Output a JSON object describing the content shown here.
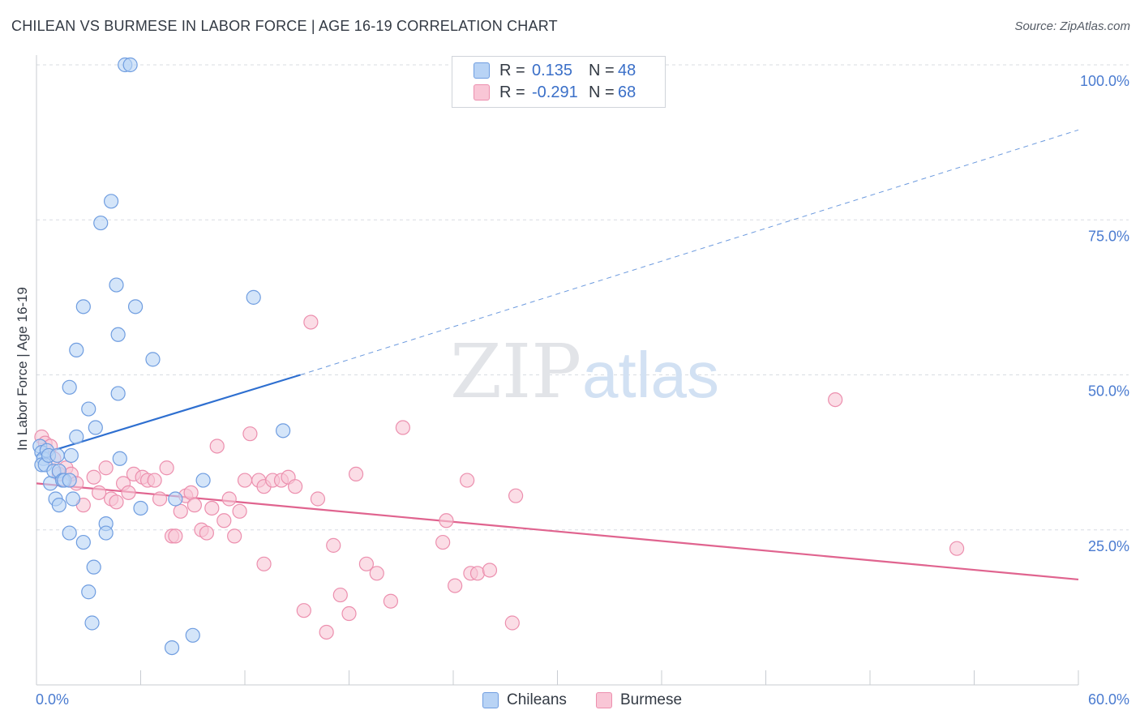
{
  "title": "CHILEAN VS BURMESE IN LABOR FORCE | AGE 16-19 CORRELATION CHART",
  "source": "Source: ZipAtlas.com",
  "watermark": {
    "zip": "ZIP",
    "atlas": "atlas"
  },
  "legend": {
    "series": [
      {
        "r_label": "R =",
        "r_value": "0.135",
        "n_label": "N =",
        "n_value": "48"
      },
      {
        "r_label": "R =",
        "r_value": "-0.291",
        "n_label": "N =",
        "n_value": "68"
      }
    ]
  },
  "bottom_legend": {
    "chileans": "Chileans",
    "burmese": "Burmese"
  },
  "colors": {
    "chilean_fill": "#b8d3f5",
    "chilean_stroke": "#6f9de0",
    "chilean_line": "#2e6fd0",
    "burmese_fill": "#f9c6d6",
    "burmese_stroke": "#ec8fae",
    "burmese_line": "#e0648f",
    "tick_text": "#4a7bd0",
    "grid": "#d8dce2"
  },
  "chart_data": {
    "type": "scatter",
    "title": "CHILEAN VS BURMESE IN LABOR FORCE | AGE 16-19 CORRELATION CHART",
    "xlabel": "",
    "ylabel": "In Labor Force | Age 16-19",
    "xlim": [
      0,
      60
    ],
    "ylim": [
      0,
      100
    ],
    "x_tick_labels": [
      "0.0%",
      "60.0%"
    ],
    "y_ticks": [
      25,
      50,
      75,
      100
    ],
    "y_tick_labels": [
      "25.0%",
      "50.0%",
      "75.0%",
      "100.0%"
    ],
    "series": [
      {
        "name": "Chileans",
        "r": 0.135,
        "n": 48,
        "points": [
          [
            0.2,
            38.5
          ],
          [
            0.3,
            37.5
          ],
          [
            0.4,
            36.5
          ],
          [
            0.3,
            35.5
          ],
          [
            0.5,
            35.5
          ],
          [
            0.6,
            37.8
          ],
          [
            0.7,
            37.0
          ],
          [
            0.8,
            32.5
          ],
          [
            1.0,
            34.5
          ],
          [
            1.2,
            37.0
          ],
          [
            1.3,
            34.5
          ],
          [
            1.1,
            30.0
          ],
          [
            1.3,
            29.0
          ],
          [
            1.5,
            33.0
          ],
          [
            1.6,
            33.0
          ],
          [
            1.9,
            33.0
          ],
          [
            2.1,
            30.0
          ],
          [
            2.0,
            37.0
          ],
          [
            2.3,
            40.0
          ],
          [
            1.9,
            24.5
          ],
          [
            2.7,
            23.0
          ],
          [
            3.4,
            41.5
          ],
          [
            3.0,
            44.5
          ],
          [
            1.9,
            48.0
          ],
          [
            2.3,
            54.0
          ],
          [
            2.7,
            61.0
          ],
          [
            4.7,
            56.5
          ],
          [
            4.6,
            64.5
          ],
          [
            5.7,
            61.0
          ],
          [
            3.7,
            74.5
          ],
          [
            4.3,
            78.0
          ],
          [
            5.1,
            100.0
          ],
          [
            5.4,
            100.0
          ],
          [
            6.7,
            52.5
          ],
          [
            4.7,
            47.0
          ],
          [
            4.8,
            36.5
          ],
          [
            6.0,
            28.5
          ],
          [
            3.3,
            19.0
          ],
          [
            3.0,
            15.0
          ],
          [
            3.2,
            10.0
          ],
          [
            4.0,
            26.0
          ],
          [
            4.0,
            24.5
          ],
          [
            7.8,
            6.0
          ],
          [
            9.0,
            8.0
          ],
          [
            8.0,
            30.0
          ],
          [
            9.6,
            33.0
          ],
          [
            12.5,
            62.5
          ],
          [
            14.2,
            41.0
          ]
        ],
        "trend": {
          "x0": 0,
          "y0": 37.0,
          "x1": 15.2,
          "y1": 50.0,
          "dashed_to_x": 60,
          "dashed_to_y": 89.5
        }
      },
      {
        "name": "Burmese",
        "r": -0.291,
        "n": 68,
        "points": [
          [
            0.3,
            40.0
          ],
          [
            0.5,
            39.0
          ],
          [
            0.8,
            38.5
          ],
          [
            1.0,
            36.5
          ],
          [
            1.3,
            34.0
          ],
          [
            1.7,
            35.0
          ],
          [
            2.0,
            34.0
          ],
          [
            2.3,
            32.5
          ],
          [
            2.7,
            29.0
          ],
          [
            3.3,
            33.5
          ],
          [
            3.6,
            31.0
          ],
          [
            4.0,
            35.0
          ],
          [
            4.3,
            30.0
          ],
          [
            4.6,
            29.5
          ],
          [
            5.0,
            32.5
          ],
          [
            5.3,
            31.0
          ],
          [
            5.6,
            34.0
          ],
          [
            6.1,
            33.5
          ],
          [
            6.4,
            33.0
          ],
          [
            6.8,
            33.0
          ],
          [
            7.1,
            30.0
          ],
          [
            7.5,
            35.0
          ],
          [
            7.8,
            24.0
          ],
          [
            8.0,
            24.0
          ],
          [
            8.3,
            28.0
          ],
          [
            8.6,
            30.5
          ],
          [
            8.9,
            31.0
          ],
          [
            9.1,
            29.0
          ],
          [
            9.5,
            25.0
          ],
          [
            9.8,
            24.5
          ],
          [
            10.1,
            28.5
          ],
          [
            10.4,
            38.5
          ],
          [
            10.8,
            26.5
          ],
          [
            11.1,
            30.0
          ],
          [
            11.4,
            24.0
          ],
          [
            11.7,
            28.0
          ],
          [
            12.0,
            33.0
          ],
          [
            12.3,
            40.5
          ],
          [
            12.8,
            33.0
          ],
          [
            13.1,
            32.0
          ],
          [
            13.6,
            33.0
          ],
          [
            14.1,
            33.0
          ],
          [
            14.5,
            33.5
          ],
          [
            14.9,
            32.0
          ],
          [
            15.4,
            12.0
          ],
          [
            15.8,
            58.5
          ],
          [
            16.2,
            30.0
          ],
          [
            16.7,
            8.5
          ],
          [
            17.1,
            22.5
          ],
          [
            17.5,
            14.5
          ],
          [
            18.0,
            11.5
          ],
          [
            18.4,
            34.0
          ],
          [
            19.0,
            19.5
          ],
          [
            19.6,
            18.0
          ],
          [
            20.4,
            13.5
          ],
          [
            21.1,
            41.5
          ],
          [
            23.4,
            23.0
          ],
          [
            23.6,
            26.5
          ],
          [
            24.1,
            16.0
          ],
          [
            24.8,
            33.0
          ],
          [
            25.0,
            18.0
          ],
          [
            25.4,
            18.0
          ],
          [
            26.1,
            18.5
          ],
          [
            27.4,
            10.0
          ],
          [
            27.6,
            30.5
          ],
          [
            13.1,
            19.5
          ],
          [
            46.0,
            46.0
          ],
          [
            53.0,
            22.0
          ]
        ],
        "trend": {
          "x0": 0,
          "y0": 32.5,
          "x1": 60,
          "y1": 17.0
        }
      }
    ]
  }
}
